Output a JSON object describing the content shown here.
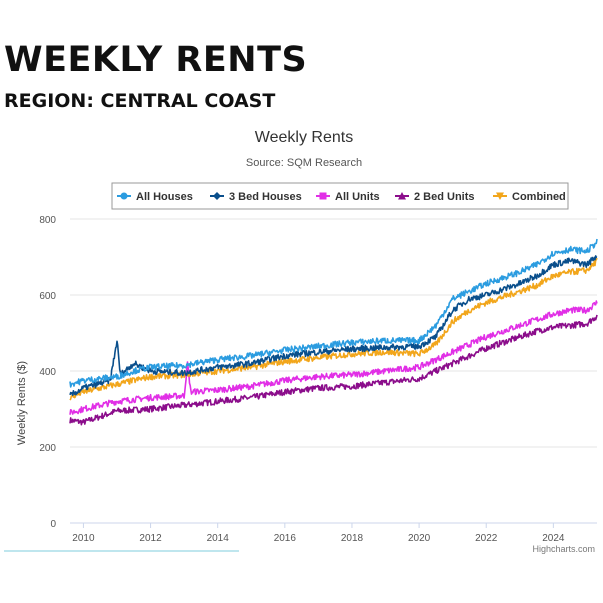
{
  "page": {
    "heading": "WEEKLY RENTS",
    "subheading": "REGION: CENTRAL COAST"
  },
  "chart_data": {
    "type": "line",
    "title": "Weekly Rents",
    "subtitle": "Source: SQM Research",
    "ylabel": "Weekly Rents ($)",
    "xlabel": "",
    "credits": "Highcharts.com",
    "x_range": [
      2009.6,
      2025.3
    ],
    "ylim": [
      0,
      800
    ],
    "y_ticks": [
      0,
      200,
      400,
      600,
      800
    ],
    "x_ticks": [
      "2010",
      "2012",
      "2014",
      "2016",
      "2018",
      "2020",
      "2022",
      "2024"
    ],
    "x_tick_values": [
      2010,
      2012,
      2014,
      2016,
      2018,
      2020,
      2022,
      2024
    ],
    "grid": "horizontal",
    "legend_position": "top-center",
    "series": [
      {
        "name": "All Houses",
        "color": "#2b9ce0",
        "marker": "circle",
        "points": [
          [
            2009.6,
            365
          ],
          [
            2010,
            375
          ],
          [
            2011,
            385
          ],
          [
            2011.5,
            400
          ],
          [
            2012,
            410
          ],
          [
            2013,
            415
          ],
          [
            2014,
            430
          ],
          [
            2015,
            440
          ],
          [
            2016,
            455
          ],
          [
            2017,
            465
          ],
          [
            2018,
            475
          ],
          [
            2019,
            480
          ],
          [
            2020,
            480
          ],
          [
            2020.5,
            520
          ],
          [
            2021,
            590
          ],
          [
            2021.5,
            610
          ],
          [
            2022,
            630
          ],
          [
            2023,
            660
          ],
          [
            2023.5,
            680
          ],
          [
            2024,
            710
          ],
          [
            2024.5,
            720
          ],
          [
            2025,
            715
          ],
          [
            2025.3,
            740
          ]
        ]
      },
      {
        "name": "3 Bed Houses",
        "color": "#0a4f8c",
        "marker": "diamond",
        "points": [
          [
            2009.6,
            335
          ],
          [
            2010,
            355
          ],
          [
            2010.8,
            375
          ],
          [
            2011,
            480
          ],
          [
            2011.1,
            390
          ],
          [
            2011.5,
            420
          ],
          [
            2012,
            400
          ],
          [
            2013,
            395
          ],
          [
            2014,
            410
          ],
          [
            2015,
            420
          ],
          [
            2016,
            440
          ],
          [
            2017,
            450
          ],
          [
            2018,
            458
          ],
          [
            2019,
            462
          ],
          [
            2020,
            465
          ],
          [
            2020.5,
            490
          ],
          [
            2021,
            560
          ],
          [
            2021.5,
            590
          ],
          [
            2022,
            600
          ],
          [
            2023,
            630
          ],
          [
            2023.5,
            650
          ],
          [
            2024,
            680
          ],
          [
            2024.5,
            690
          ],
          [
            2025,
            680
          ],
          [
            2025.3,
            705
          ]
        ]
      },
      {
        "name": "All Units",
        "color": "#e12fe6",
        "marker": "square",
        "points": [
          [
            2009.6,
            290
          ],
          [
            2010,
            300
          ],
          [
            2011,
            320
          ],
          [
            2012,
            330
          ],
          [
            2013,
            335
          ],
          [
            2013.1,
            420
          ],
          [
            2013.2,
            345
          ],
          [
            2014,
            350
          ],
          [
            2015,
            360
          ],
          [
            2016,
            375
          ],
          [
            2017,
            385
          ],
          [
            2018,
            390
          ],
          [
            2019,
            400
          ],
          [
            2020,
            410
          ],
          [
            2021,
            450
          ],
          [
            2021.5,
            470
          ],
          [
            2022,
            490
          ],
          [
            2023,
            520
          ],
          [
            2023.5,
            535
          ],
          [
            2024,
            550
          ],
          [
            2024.5,
            560
          ],
          [
            2025,
            560
          ],
          [
            2025.3,
            580
          ]
        ]
      },
      {
        "name": "2 Bed Units",
        "color": "#8b0d8b",
        "marker": "triangle",
        "points": [
          [
            2009.6,
            270
          ],
          [
            2010,
            265
          ],
          [
            2010.5,
            280
          ],
          [
            2011,
            295
          ],
          [
            2012,
            300
          ],
          [
            2013,
            310
          ],
          [
            2014,
            320
          ],
          [
            2015,
            330
          ],
          [
            2016,
            345
          ],
          [
            2017,
            355
          ],
          [
            2018,
            360
          ],
          [
            2019,
            370
          ],
          [
            2020,
            380
          ],
          [
            2021,
            420
          ],
          [
            2021.5,
            440
          ],
          [
            2022,
            460
          ],
          [
            2023,
            490
          ],
          [
            2023.5,
            505
          ],
          [
            2024,
            515
          ],
          [
            2024.5,
            520
          ],
          [
            2025,
            525
          ],
          [
            2025.3,
            545
          ]
        ]
      },
      {
        "name": "Combined",
        "color": "#f2a61b",
        "marker": "triangle-down",
        "points": [
          [
            2009.6,
            330
          ],
          [
            2010,
            345
          ],
          [
            2011,
            365
          ],
          [
            2012,
            385
          ],
          [
            2013,
            390
          ],
          [
            2014,
            400
          ],
          [
            2015,
            410
          ],
          [
            2016,
            425
          ],
          [
            2017,
            435
          ],
          [
            2018,
            445
          ],
          [
            2019,
            450
          ],
          [
            2020,
            445
          ],
          [
            2020.5,
            470
          ],
          [
            2021,
            530
          ],
          [
            2021.5,
            560
          ],
          [
            2022,
            580
          ],
          [
            2023,
            610
          ],
          [
            2023.5,
            625
          ],
          [
            2024,
            650
          ],
          [
            2024.5,
            660
          ],
          [
            2025,
            665
          ],
          [
            2025.3,
            690
          ]
        ]
      }
    ]
  }
}
